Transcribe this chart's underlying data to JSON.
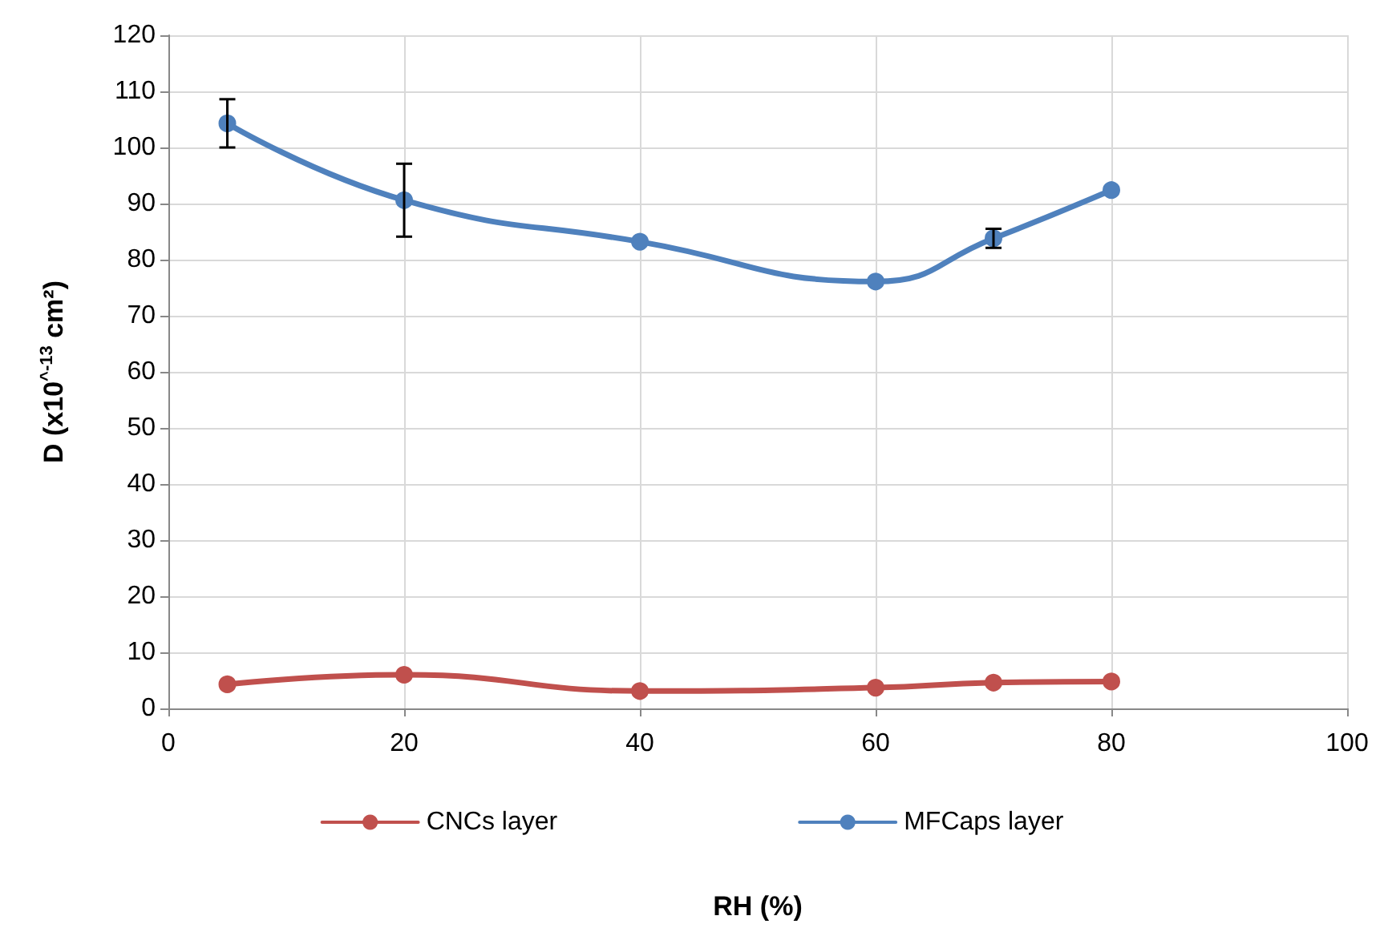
{
  "chart_data": {
    "type": "line",
    "xlabel": "RH (%)",
    "ylabel": "D (x10$^{^-13}$ cm²)",
    "x": [
      5,
      20,
      40,
      60,
      70,
      80
    ],
    "series": [
      {
        "name": "CNCs layer",
        "color": "#c0504d",
        "values": [
          4.3,
          6.0,
          3.1,
          3.7,
          4.6,
          4.8
        ]
      },
      {
        "name": "MFCaps layer",
        "color": "#4f81bd",
        "values": [
          104.3,
          90.6,
          83.2,
          76.1,
          83.8,
          92.4
        ],
        "errors": [
          4.3,
          6.5,
          null,
          null,
          1.7,
          null
        ]
      }
    ],
    "xlim": [
      0,
      100
    ],
    "xticks": [
      0,
      20,
      40,
      60,
      80,
      100
    ],
    "ylim": [
      0,
      120
    ],
    "yticks": [
      0,
      10,
      20,
      30,
      40,
      50,
      60,
      70,
      80,
      90,
      100,
      110,
      120
    ],
    "grid": true,
    "legend": "bottom",
    "marker": "circle",
    "line_style": "solid"
  }
}
